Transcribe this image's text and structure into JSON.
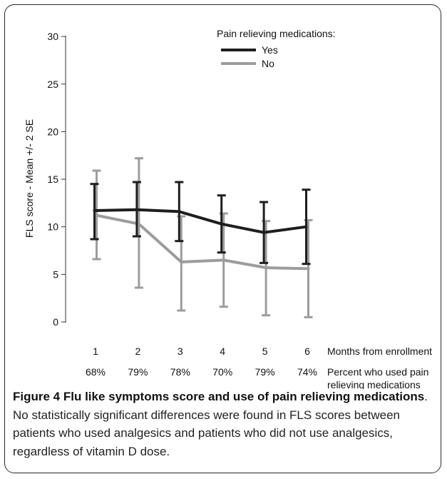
{
  "caption": {
    "figure_label": "Figure 4",
    "title": "Flu like symptoms score and use of pain relieving medications",
    "body": ". No statistically significant differences were found in FLS scores between patients who used analgesics and patients who did not use analgesics, regardless of vitamin D dose."
  },
  "chart_data": {
    "type": "line",
    "ylabel": "FLS score - Mean +/- 2 SE",
    "xlabel": "Months from enrollment",
    "x": [
      1,
      2,
      3,
      4,
      5,
      6
    ],
    "x_tick_labels": [
      "1",
      "2",
      "3",
      "4",
      "5",
      "6"
    ],
    "ylim": [
      0,
      30
    ],
    "y_ticks": [
      0,
      5,
      10,
      15,
      20,
      25,
      30
    ],
    "y_tick_labels": [
      "0",
      "5",
      "10",
      "15",
      "20",
      "25",
      "30"
    ],
    "grid": false,
    "legend": {
      "title": "Pain relieving medications:",
      "placement": "top-right"
    },
    "percent_row_label": "Percent who used pain relieving medications",
    "percent_row_label_lines": [
      "Percent who used pain",
      "relieving medications"
    ],
    "percent_values": [
      "68%",
      "79%",
      "78%",
      "70%",
      "79%",
      "74%"
    ],
    "series": [
      {
        "name": "Yes",
        "color": "#1e1e1e",
        "mean": [
          11.7,
          11.8,
          11.6,
          10.3,
          9.4,
          10.0
        ],
        "lower": [
          8.7,
          9.0,
          8.5,
          7.3,
          6.2,
          6.1
        ],
        "upper": [
          14.5,
          14.7,
          14.7,
          13.3,
          12.6,
          13.9
        ]
      },
      {
        "name": "No",
        "color": "#9c9c9c",
        "mean": [
          11.2,
          10.3,
          6.3,
          6.5,
          5.7,
          5.6
        ],
        "lower": [
          6.6,
          3.6,
          1.2,
          1.6,
          0.7,
          0.5
        ],
        "upper": [
          15.9,
          17.2,
          11.1,
          11.4,
          10.6,
          10.7
        ]
      }
    ]
  }
}
